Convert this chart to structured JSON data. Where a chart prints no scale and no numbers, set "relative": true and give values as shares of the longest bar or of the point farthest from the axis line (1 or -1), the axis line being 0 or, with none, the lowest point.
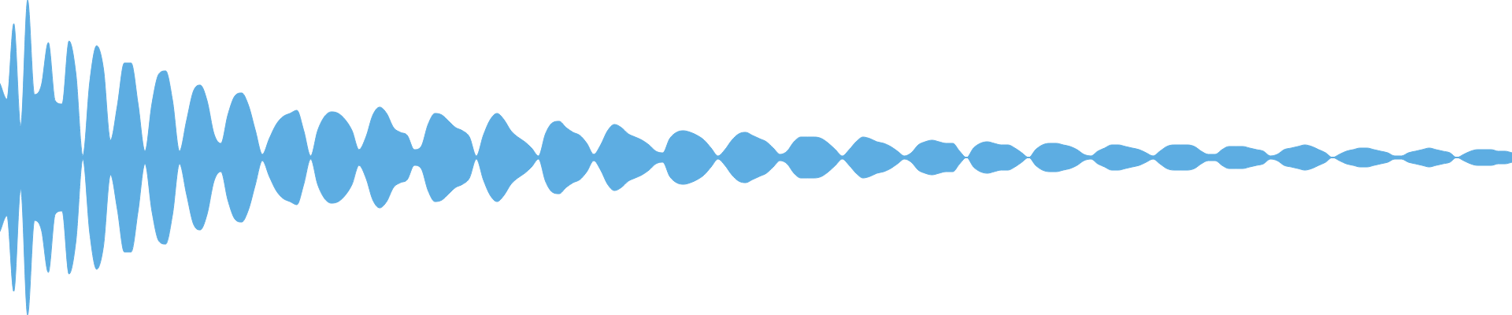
{
  "chart_data": {
    "type": "area",
    "relative": true,
    "categories": [
      null,
      null,
      null,
      null,
      null,
      null,
      null,
      null,
      null,
      null,
      null,
      null,
      null,
      null,
      null,
      null,
      null,
      null,
      null,
      null,
      null,
      null,
      null,
      null,
      null,
      null,
      null,
      null,
      null,
      null,
      null,
      null,
      null,
      null,
      null,
      null,
      null,
      null,
      null,
      null,
      null,
      null,
      null,
      null,
      null,
      null,
      null,
      null,
      null,
      null,
      null,
      null,
      null,
      null,
      null,
      null,
      null,
      null,
      null,
      null,
      null,
      null,
      null,
      null,
      null,
      null,
      null,
      null,
      null,
      null,
      null,
      null,
      null,
      null,
      null,
      null,
      null,
      null,
      null,
      null,
      null,
      null,
      null,
      null,
      null,
      null,
      null,
      null,
      null,
      null,
      null,
      null,
      null,
      null,
      null,
      null,
      null,
      null,
      null,
      null,
      null,
      null,
      null,
      null,
      null,
      null,
      null,
      null,
      null,
      null,
      null,
      null,
      null,
      null,
      null,
      null,
      null,
      null,
      null,
      null,
      null,
      null,
      null,
      null,
      null,
      null,
      null,
      null,
      null,
      null,
      null,
      null,
      null,
      null,
      null,
      null,
      null,
      null,
      null,
      null,
      null,
      null,
      null,
      null,
      null,
      null,
      null,
      null,
      null,
      null,
      null,
      null,
      null,
      null,
      null,
      null,
      null,
      null,
      null,
      null,
      null,
      null,
      null,
      null,
      null,
      null,
      null,
      null,
      null,
      null,
      null,
      null,
      null,
      null,
      null,
      null,
      null,
      null,
      null,
      null,
      null,
      null,
      null,
      null,
      null,
      null,
      null,
      null,
      null,
      null,
      null,
      null,
      null,
      null,
      null,
      null,
      null,
      null,
      null,
      null,
      null,
      null,
      null,
      null,
      null,
      null,
      null,
      null,
      null,
      null,
      null,
      null,
      null,
      null,
      null,
      null,
      null,
      null,
      null,
      null
    ],
    "series": [
      {
        "color": "#5dade2",
        "values": [
          0.47,
          0.37,
          0.85,
          0.2,
          1,
          0.4,
          0.46,
          0.73,
          0.36,
          0.34,
          0.74,
          0.53,
          0.01,
          0.48,
          0.71,
          0.56,
          0.11,
          0.33,
          0.6,
          0.6,
          0.34,
          0.04,
          0.34,
          0.53,
          0.55,
          0.36,
          0.04,
          0.23,
          0.42,
          0.46,
          0.36,
          0.15,
          0.09,
          0.27,
          0.39,
          0.41,
          0.33,
          0.17,
          0.02,
          0.12,
          0.21,
          0.26,
          0.28,
          0.3,
          0.17,
          0.01,
          0.17,
          0.26,
          0.29,
          0.28,
          0.24,
          0.17,
          0.05,
          0.13,
          0.27,
          0.32,
          0.28,
          0.19,
          0.16,
          0.14,
          0.05,
          0.07,
          0.21,
          0.28,
          0.27,
          0.23,
          0.19,
          0.17,
          0.13,
          0.01,
          0.14,
          0.24,
          0.28,
          0.24,
          0.17,
          0.13,
          0.1,
          0.06,
          0.01,
          0.15,
          0.22,
          0.23,
          0.19,
          0.16,
          0.14,
          0.09,
          0.02,
          0.08,
          0.17,
          0.21,
          0.19,
          0.15,
          0.13,
          0.11,
          0.08,
          0.04,
          0.03,
          0.12,
          0.16,
          0.17,
          0.16,
          0.14,
          0.11,
          0.06,
          0.01,
          0.05,
          0.11,
          0.15,
          0.16,
          0.14,
          0.12,
          0.1,
          0.06,
          0.02,
          0.04,
          0.1,
          0.13,
          0.13,
          0.13,
          0.12,
          0.09,
          0.05,
          0.01,
          0.05,
          0.1,
          0.13,
          0.12,
          0.1,
          0.09,
          0.07,
          0.04,
          0.01,
          0.03,
          0.08,
          0.1,
          0.11,
          0.1,
          0.09,
          0.09,
          0.04,
          0,
          0.06,
          0.09,
          0.1,
          0.09,
          0.08,
          0.08,
          0.06,
          0.03,
          0,
          0.05,
          0.08,
          0.09,
          0.09,
          0.08,
          0.07,
          0.05,
          0.02,
          0.01,
          0.04,
          0.06,
          0.08,
          0.08,
          0.07,
          0.06,
          0.05,
          0.03,
          0.01,
          0.04,
          0.07,
          0.08,
          0.08,
          0.08,
          0.07,
          0.04,
          0.02,
          0.02,
          0.05,
          0.07,
          0.07,
          0.07,
          0.06,
          0.05,
          0.04,
          0.01,
          0.02,
          0.05,
          0.06,
          0.07,
          0.08,
          0.07,
          0.05,
          0.03,
          0,
          0.02,
          0.04,
          0.05,
          0.06,
          0.06,
          0.05,
          0.04,
          0.03,
          0.01,
          0.01,
          0.03,
          0.04,
          0.05,
          0.06,
          0.05,
          0.04,
          0.03,
          0,
          0.02,
          0.04,
          0.05,
          0.05,
          0.05,
          0.04,
          0.04,
          0.03
        ]
      },
      {
        "color": "#5dade2",
        "values": [
          -0.47,
          -0.37,
          -0.85,
          -0.2,
          -1,
          -0.4,
          -0.46,
          -0.73,
          -0.36,
          -0.34,
          -0.74,
          -0.53,
          -0.01,
          -0.48,
          -0.71,
          -0.56,
          -0.11,
          -0.33,
          -0.6,
          -0.6,
          -0.34,
          -0.04,
          -0.34,
          -0.53,
          -0.55,
          -0.36,
          -0.04,
          -0.23,
          -0.42,
          -0.46,
          -0.36,
          -0.15,
          -0.09,
          -0.27,
          -0.39,
          -0.41,
          -0.33,
          -0.17,
          -0.02,
          -0.12,
          -0.21,
          -0.26,
          -0.28,
          -0.3,
          -0.17,
          -0.01,
          -0.17,
          -0.26,
          -0.29,
          -0.28,
          -0.24,
          -0.17,
          -0.05,
          -0.13,
          -0.27,
          -0.32,
          -0.28,
          -0.19,
          -0.16,
          -0.14,
          -0.05,
          -0.07,
          -0.21,
          -0.28,
          -0.27,
          -0.23,
          -0.19,
          -0.17,
          -0.13,
          -0.01,
          -0.14,
          -0.24,
          -0.28,
          -0.24,
          -0.17,
          -0.13,
          -0.1,
          -0.06,
          -0.01,
          -0.15,
          -0.22,
          -0.23,
          -0.19,
          -0.16,
          -0.14,
          -0.09,
          -0.02,
          -0.08,
          -0.17,
          -0.21,
          -0.19,
          -0.15,
          -0.13,
          -0.11,
          -0.08,
          -0.04,
          -0.03,
          -0.12,
          -0.16,
          -0.17,
          -0.16,
          -0.14,
          -0.11,
          -0.06,
          -0.01,
          -0.05,
          -0.11,
          -0.15,
          -0.16,
          -0.14,
          -0.12,
          -0.1,
          -0.06,
          -0.02,
          -0.04,
          -0.1,
          -0.13,
          -0.13,
          -0.13,
          -0.12,
          -0.09,
          -0.05,
          -0.01,
          -0.05,
          -0.1,
          -0.13,
          -0.12,
          -0.1,
          -0.09,
          -0.07,
          -0.04,
          -0.01,
          -0.03,
          -0.08,
          -0.1,
          -0.11,
          -0.1,
          -0.09,
          -0.09,
          -0.04,
          0,
          -0.06,
          -0.09,
          -0.1,
          -0.09,
          -0.08,
          -0.08,
          -0.06,
          -0.03,
          0,
          -0.05,
          -0.08,
          -0.09,
          -0.09,
          -0.08,
          -0.07,
          -0.05,
          -0.02,
          -0.01,
          -0.04,
          -0.06,
          -0.08,
          -0.08,
          -0.07,
          -0.06,
          -0.05,
          -0.03,
          -0.01,
          -0.04,
          -0.07,
          -0.08,
          -0.08,
          -0.08,
          -0.07,
          -0.04,
          -0.02,
          -0.02,
          -0.05,
          -0.07,
          -0.07,
          -0.07,
          -0.06,
          -0.05,
          -0.04,
          -0.01,
          -0.02,
          -0.05,
          -0.06,
          -0.07,
          -0.08,
          -0.07,
          -0.05,
          -0.03,
          0,
          -0.02,
          -0.04,
          -0.05,
          -0.06,
          -0.06,
          -0.05,
          -0.04,
          -0.03,
          -0.01,
          -0.01,
          -0.03,
          -0.04,
          -0.05,
          -0.06,
          -0.05,
          -0.04,
          -0.03,
          0,
          -0.02,
          -0.04,
          -0.05,
          -0.05,
          -0.05,
          -0.04,
          -0.04,
          -0.03
        ]
      }
    ],
    "ref_lines": [
      {
        "axis": "y",
        "value": 0,
        "color": "#5dade2"
      }
    ]
  }
}
